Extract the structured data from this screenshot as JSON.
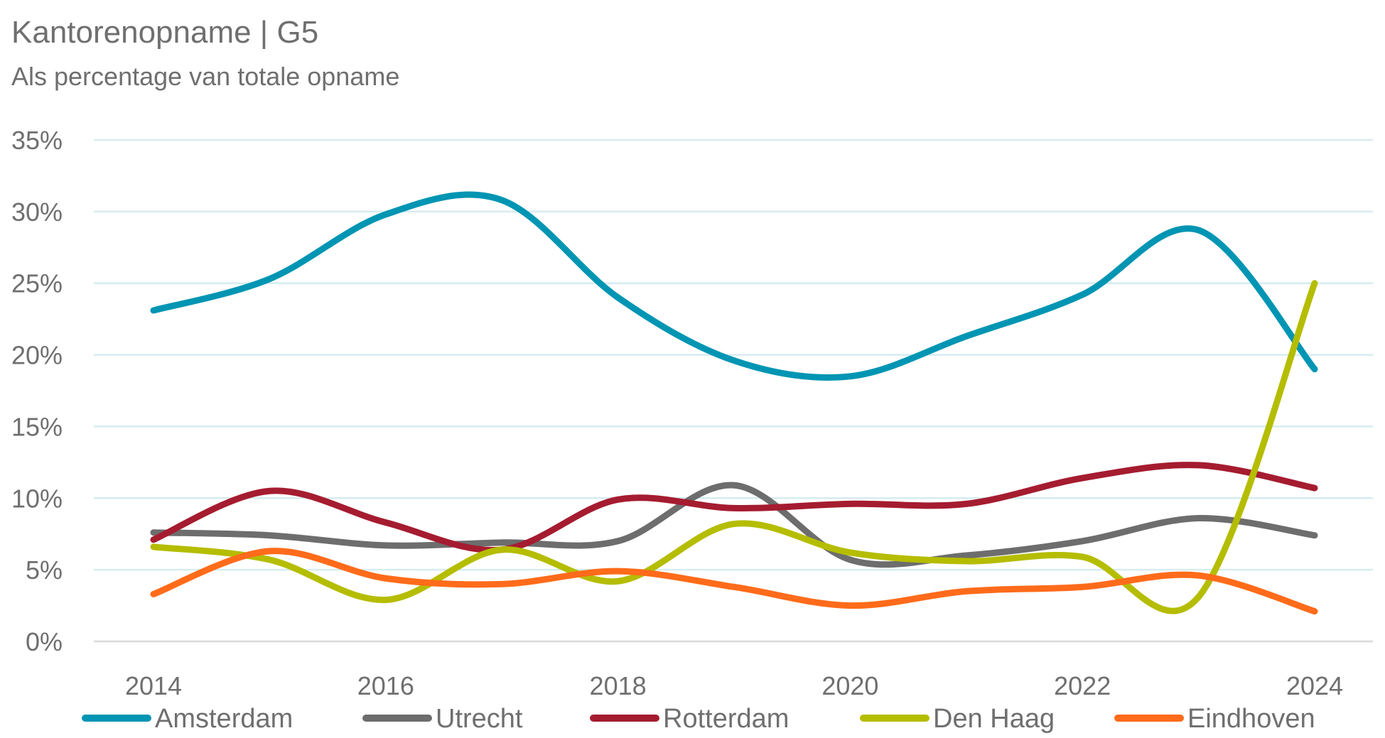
{
  "chart_data": {
    "type": "line",
    "title": "Kantorenopname | G5",
    "subtitle": "Als percentage van totale opname",
    "xlabel": "",
    "ylabel": "",
    "x": [
      2014,
      2015,
      2016,
      2017,
      2018,
      2019,
      2020,
      2021,
      2022,
      2023,
      2024
    ],
    "x_tick_labels": [
      "2014",
      "2016",
      "2018",
      "2020",
      "2022",
      "2024"
    ],
    "y_tick_labels": [
      "0%",
      "5%",
      "10%",
      "15%",
      "20%",
      "25%",
      "30%",
      "35%"
    ],
    "ylim": [
      0,
      35
    ],
    "grid": true,
    "smooth": true,
    "legend_position": "bottom",
    "series": [
      {
        "name": "Amsterdam",
        "color": "#0095b3",
        "values": [
          23.1,
          25.3,
          29.8,
          30.8,
          24.0,
          19.6,
          18.5,
          21.3,
          24.2,
          28.7,
          19.0
        ]
      },
      {
        "name": "Utrecht",
        "color": "#6d6d6d",
        "values": [
          7.6,
          7.4,
          6.7,
          6.9,
          7.0,
          10.9,
          5.7,
          6.0,
          7.0,
          8.6,
          7.4
        ]
      },
      {
        "name": "Rotterdam",
        "color": "#a51c30",
        "values": [
          7.1,
          10.5,
          8.3,
          6.4,
          9.9,
          9.3,
          9.6,
          9.6,
          11.4,
          12.3,
          10.7
        ]
      },
      {
        "name": "Den Haag",
        "color": "#b5bd00",
        "values": [
          6.6,
          5.7,
          2.9,
          6.4,
          4.2,
          8.2,
          6.2,
          5.6,
          5.9,
          3.1,
          25.0
        ]
      },
      {
        "name": "Eindhoven",
        "color": "#ff6b1a",
        "values": [
          3.3,
          6.3,
          4.4,
          4.0,
          4.9,
          3.8,
          2.5,
          3.5,
          3.8,
          4.6,
          2.1
        ]
      }
    ]
  }
}
